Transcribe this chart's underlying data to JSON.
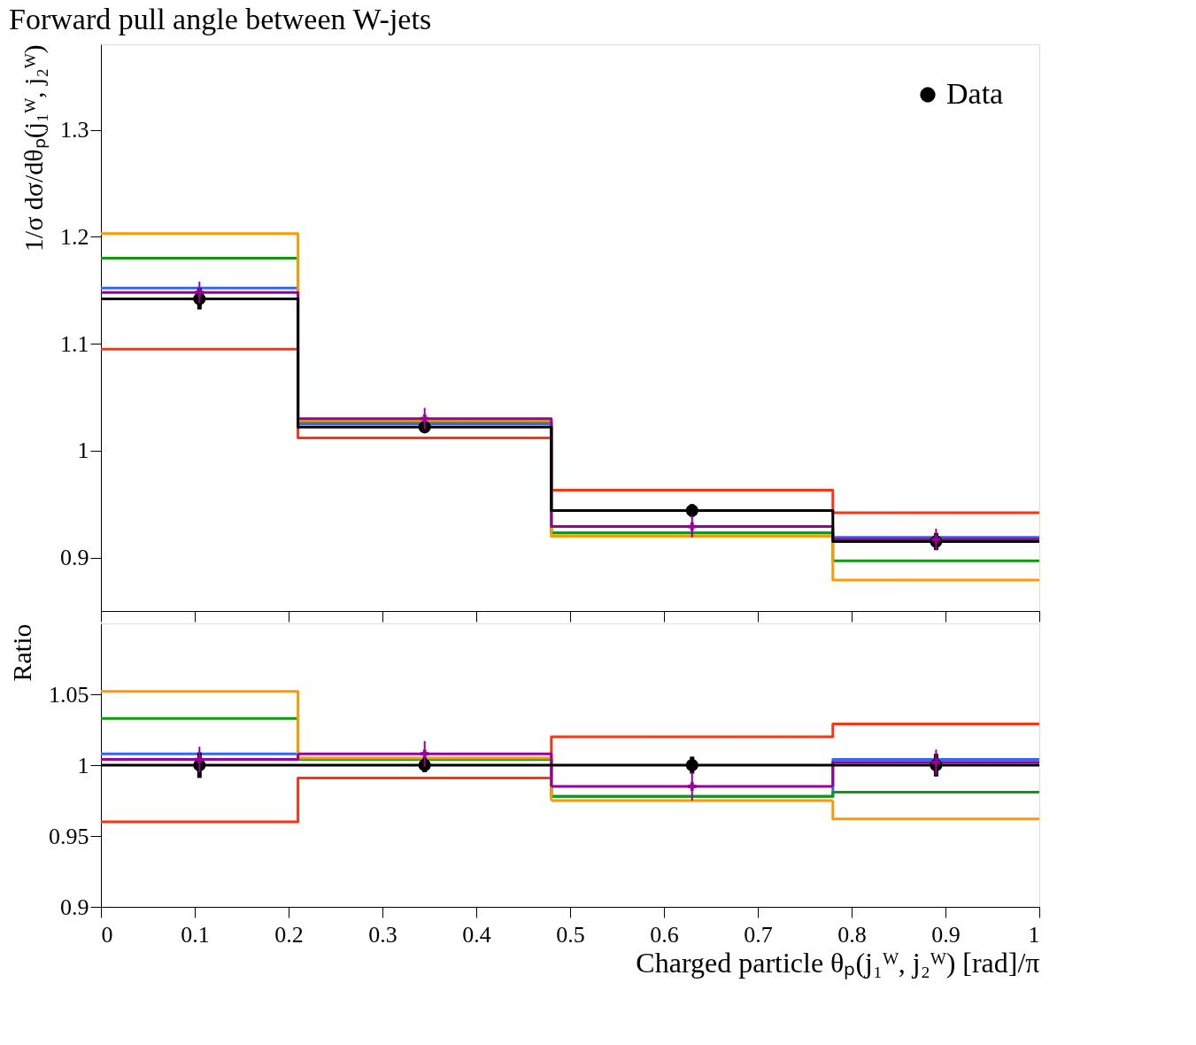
{
  "chart_data": [
    {
      "type": "histogram",
      "title": "Forward pull angle between W-jets",
      "ylabel": "1/σ dσ/dθₚ(j₁ᵂ, j₂ᵂ)",
      "bins": [
        0,
        0.21,
        0.48,
        0.78,
        1.0
      ],
      "xlim": [
        0,
        1
      ],
      "xticks": [
        0,
        0.1,
        0.2,
        0.3,
        0.4,
        0.5,
        0.6,
        0.7,
        0.8,
        0.9,
        1
      ],
      "ylim": [
        0.85,
        1.38
      ],
      "yticks": [
        0.9,
        1,
        1.1,
        1.2,
        1.3
      ],
      "tick_labels": "y",
      "grid": false,
      "legend": "top right",
      "series": [
        {
          "color": "#ff3311",
          "values": [
            1.095,
            1.012,
            0.963,
            0.942
          ]
        },
        {
          "color": "#3366ff",
          "values": [
            1.152,
            1.025,
            0.923,
            0.919
          ]
        },
        {
          "color": "#119911",
          "values": [
            1.18,
            1.027,
            0.923,
            0.897
          ]
        },
        {
          "color": "#ff9900",
          "values": [
            1.203,
            1.028,
            0.92,
            0.879
          ]
        },
        {
          "color": "#990099",
          "values": [
            1.148,
            1.03,
            0.929,
            0.917
          ]
        },
        {
          "color": "#000000",
          "values": [
            1.142,
            1.022,
            0.944,
            0.915
          ]
        },
        {
          "type": "scatter",
          "name": "Data",
          "color": "#000000",
          "x": [
            0.105,
            0.345,
            0.63,
            0.89
          ],
          "values": [
            1.142,
            1.022,
            0.944,
            0.915
          ],
          "errors": [
            0.01,
            0.005,
            0.006,
            0.008
          ],
          "marker": "circle"
        },
        {
          "type": "scatter",
          "marker": "cross",
          "color": "#990099",
          "x": [
            0.105,
            0.345,
            0.63,
            0.89
          ],
          "values": [
            1.148,
            1.03,
            0.929,
            0.917
          ],
          "errors": [
            0.01,
            0.01,
            0.01,
            0.01
          ]
        }
      ]
    },
    {
      "type": "histogram",
      "xlabel": "Charged particle θₚ(j₁ᵂ, j₂ᵂ) [rad]/π",
      "ylabel": "Ratio",
      "bins": [
        0,
        0.21,
        0.48,
        0.78,
        1.0
      ],
      "xlim": [
        0,
        1
      ],
      "xticks": [
        0,
        0.1,
        0.2,
        0.3,
        0.4,
        0.5,
        0.6,
        0.7,
        0.8,
        0.9,
        1
      ],
      "ylim": [
        0.9,
        1.1
      ],
      "yticks": [
        0.9,
        0.95,
        1,
        1.05
      ],
      "grid": false,
      "series": [
        {
          "color": "#ff3311",
          "values": [
            0.96,
            0.991,
            1.02,
            1.029
          ]
        },
        {
          "color": "#3366ff",
          "values": [
            1.008,
            1.004,
            0.978,
            1.004
          ]
        },
        {
          "color": "#119911",
          "values": [
            1.033,
            1.004,
            0.978,
            0.981
          ]
        },
        {
          "color": "#ff9900",
          "values": [
            1.052,
            1.005,
            0.975,
            0.962
          ]
        },
        {
          "color": "#990099",
          "values": [
            1.004,
            1.008,
            0.985,
            1.002
          ]
        },
        {
          "color": "#000000",
          "values": [
            1,
            1,
            1,
            1
          ]
        },
        {
          "type": "scatter",
          "color": "#000000",
          "x": [
            0.105,
            0.345,
            0.63,
            0.89
          ],
          "values": [
            1,
            1,
            1,
            1
          ],
          "errors": [
            0.009,
            0.005,
            0.006,
            0.008
          ],
          "marker": "circle"
        },
        {
          "type": "scatter",
          "marker": "cross",
          "color": "#990099",
          "x": [
            0.105,
            0.345,
            0.63,
            0.89
          ],
          "values": [
            1.004,
            1.008,
            0.985,
            1.002
          ],
          "errors": [
            0.009,
            0.009,
            0.01,
            0.009
          ]
        }
      ]
    }
  ]
}
